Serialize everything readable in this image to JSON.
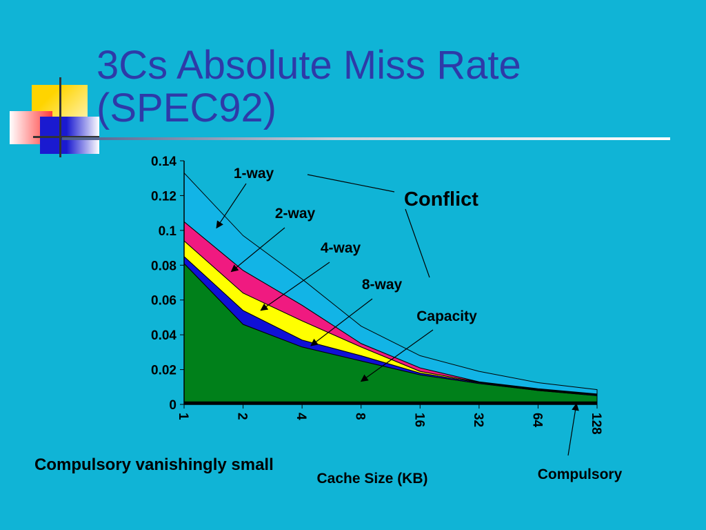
{
  "slide": {
    "title_line1": "3Cs Absolute Miss Rate",
    "title_line2": "(SPEC92)",
    "bottom_note": "Compulsory vanishingly small"
  },
  "chart_data": {
    "type": "area",
    "stacked": true,
    "x": [
      "1",
      "2",
      "4",
      "8",
      "16",
      "32",
      "64",
      "128"
    ],
    "xlabel": "Cache Size (KB)",
    "ylabel": "",
    "ylim": [
      0,
      0.14
    ],
    "yticks": [
      "0",
      "0.02",
      "0.04",
      "0.06",
      "0.08",
      "0.1",
      "0.12",
      "0.14"
    ],
    "x_tick_rotation": "vertical",
    "grid": false,
    "series": [
      {
        "name": "Compulsory",
        "color": "#000000",
        "top": [
          0.0015,
          0.0015,
          0.0015,
          0.0015,
          0.0015,
          0.0015,
          0.0015,
          0.0015
        ]
      },
      {
        "name": "Capacity",
        "color": "#00801a",
        "top": [
          0.081,
          0.046,
          0.033,
          0.025,
          0.017,
          0.012,
          0.008,
          0.005
        ]
      },
      {
        "name": "8-way",
        "color": "#1010d6",
        "top": [
          0.085,
          0.054,
          0.037,
          0.028,
          0.018,
          0.0125,
          0.0083,
          0.0055
        ]
      },
      {
        "name": "4-way",
        "color": "#ffff00",
        "top": [
          0.094,
          0.064,
          0.048,
          0.033,
          0.019,
          0.0128,
          0.0086,
          0.0058
        ]
      },
      {
        "name": "2-way",
        "color": "#f01a80",
        "top": [
          0.105,
          0.077,
          0.057,
          0.035,
          0.021,
          0.013,
          0.009,
          0.006
        ]
      },
      {
        "name": "1-way",
        "color": "#12b4e6",
        "top": [
          0.133,
          0.097,
          0.072,
          0.045,
          0.028,
          0.019,
          0.0125,
          0.0085
        ]
      }
    ],
    "annotations": [
      {
        "text": "1-way",
        "target_series": "1-way"
      },
      {
        "text": "2-way",
        "target_series": "2-way"
      },
      {
        "text": "4-way",
        "target_series": "4-way"
      },
      {
        "text": "8-way",
        "target_series": "8-way"
      },
      {
        "text": "Capacity",
        "target_series": "Capacity"
      },
      {
        "text": "Conflict"
      },
      {
        "text": "Compulsory",
        "target_series": "Compulsory"
      }
    ]
  }
}
